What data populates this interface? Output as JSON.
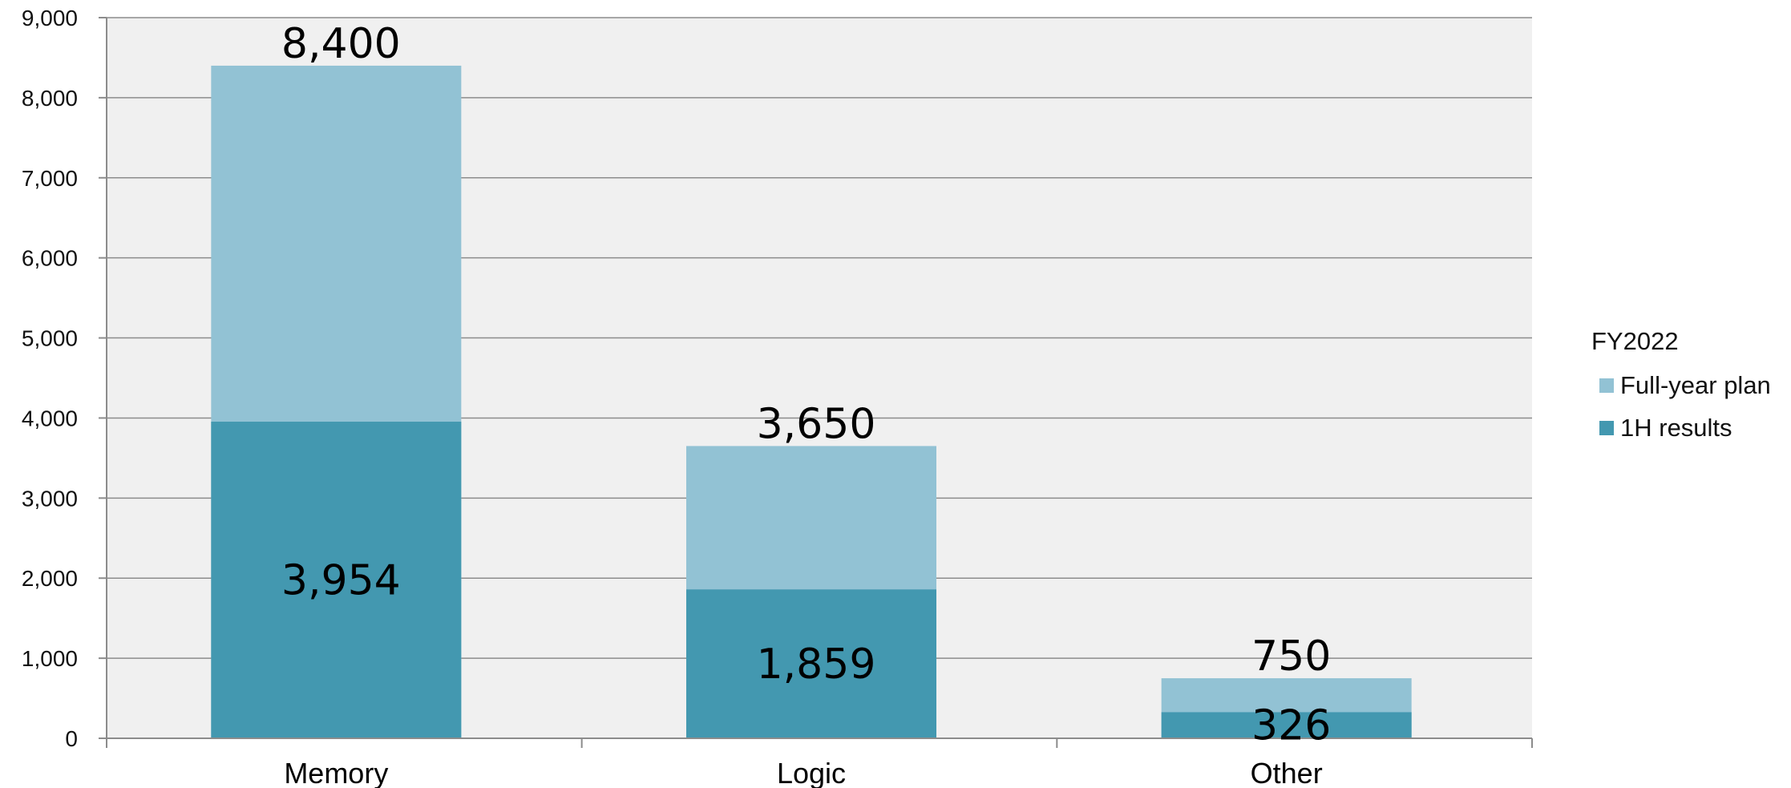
{
  "chart_data": {
    "type": "bar",
    "stacked": false,
    "overlap": true,
    "categories": [
      "Memory",
      "Logic",
      "Other"
    ],
    "series": [
      {
        "name": "Full-year plan",
        "values": [
          8400,
          3650,
          750
        ],
        "labels": [
          "8,400",
          "3,650",
          "750"
        ],
        "color": "#92c2d4"
      },
      {
        "name": "1H results",
        "values": [
          3954,
          1859,
          326
        ],
        "labels": [
          "3,954",
          "1,859",
          "326"
        ],
        "color": "#4398b0"
      }
    ],
    "ylim": [
      0,
      9000
    ],
    "yticks": [
      0,
      1000,
      2000,
      3000,
      4000,
      5000,
      6000,
      7000,
      8000,
      9000
    ],
    "ytick_labels": [
      "0",
      "1,000",
      "2,000",
      "3,000",
      "4,000",
      "5,000",
      "6,000",
      "7,000",
      "8,000",
      "9,000"
    ],
    "grid": true,
    "plot_background": "#f0f0f0",
    "legend": {
      "title": "FY2022",
      "placement": "right"
    },
    "title": "",
    "xlabel": "",
    "ylabel": ""
  }
}
